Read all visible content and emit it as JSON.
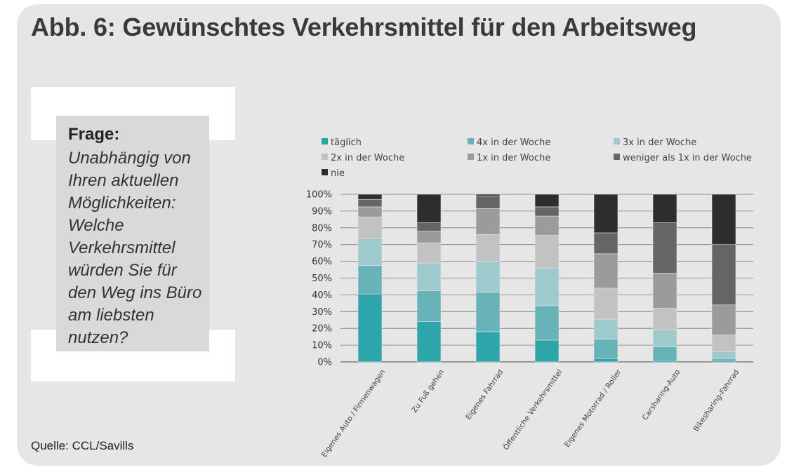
{
  "title": "Abb. 6: Gewünschtes Verkehrsmittel für den Arbeitsweg",
  "question": {
    "heading": "Frage:",
    "text": "Unabhängig von Ihren aktuellen Möglichkeiten: Welche Verkehrsmittel würden Sie für den Weg ins Büro am liebsten nutzen?"
  },
  "source": "Quelle: CCL/Savills",
  "colors": {
    "panel": "#e6e6e6",
    "taeglich": "#2ea5a9",
    "4x": "#68b3b8",
    "3x": "#9ecacd",
    "2x": "#c2c2c2",
    "1x": "#9b9b9b",
    "weniger": "#656565",
    "nie": "#2b2d2f"
  },
  "chart_data": {
    "type": "bar",
    "stacked": true,
    "categories": [
      "Eigenes Auto / Firmenwagen",
      "Zu Fuß gehen",
      "Eigenes Fahrrad",
      "Öffentliche Verkehrsmittel",
      "Eigenes Motorrad / Roller",
      "Carsharing-Auto",
      "Bikesharing-Fahrrad"
    ],
    "series": [
      {
        "name": "täglich",
        "color": "#2ea5a9",
        "values": [
          40.5,
          24,
          18,
          13,
          2,
          1,
          1
        ]
      },
      {
        "name": "4x in der Woche",
        "color": "#68b3b8",
        "values": [
          17,
          18.5,
          23.5,
          20.5,
          11.5,
          8,
          1
        ]
      },
      {
        "name": "3x in der Woche",
        "color": "#9ecacd",
        "values": [
          16,
          16.5,
          18.5,
          22.5,
          12,
          10,
          4
        ]
      },
      {
        "name": "2x in der Woche",
        "color": "#c2c2c2",
        "values": [
          13,
          12,
          16,
          19.5,
          18.5,
          13,
          10
        ]
      },
      {
        "name": "1x in der Woche",
        "color": "#9b9b9b",
        "values": [
          6,
          7,
          15.5,
          11.5,
          20.5,
          21,
          18
        ]
      },
      {
        "name": "weniger als 1x in der Woche",
        "color": "#656565",
        "values": [
          4.5,
          5,
          7.5,
          5.5,
          12.5,
          30,
          36
        ]
      },
      {
        "name": "nie",
        "color": "#2b2d2f",
        "values": [
          3,
          17,
          1,
          7.5,
          23,
          17,
          30
        ]
      }
    ],
    "yticks": [
      "0%",
      "10%",
      "20%",
      "30%",
      "40%",
      "50%",
      "60%",
      "70%",
      "80%",
      "90%",
      "100%"
    ],
    "ylim": [
      0,
      100
    ],
    "grid": true,
    "legend_position": "top"
  }
}
